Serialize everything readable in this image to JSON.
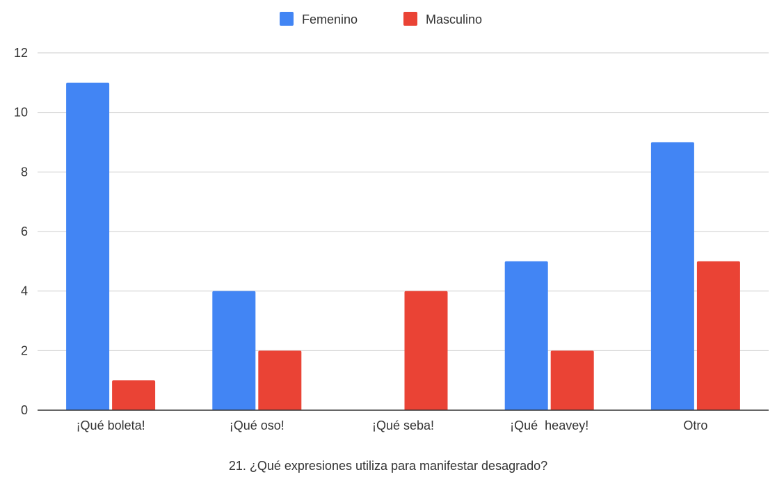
{
  "chart_data": {
    "type": "bar",
    "xlabel": "21. ¿Qué expresiones utiliza para manifestar desagrado?",
    "ylabel": "",
    "categories": [
      "¡Qué boleta!",
      "¡Qué oso!",
      "¡Qué seba!",
      "¡Qué  heavey!",
      "Otro"
    ],
    "series": [
      {
        "name": "Femenino",
        "color": "#4285f4",
        "values": [
          11,
          4,
          0,
          5,
          9
        ]
      },
      {
        "name": "Masculino",
        "color": "#ea4335",
        "values": [
          1,
          2,
          4,
          2,
          5
        ]
      }
    ],
    "ylim": [
      0,
      12
    ],
    "yticks": [
      0,
      2,
      4,
      6,
      8,
      10,
      12
    ],
    "grid": true,
    "legend": "top-center"
  }
}
